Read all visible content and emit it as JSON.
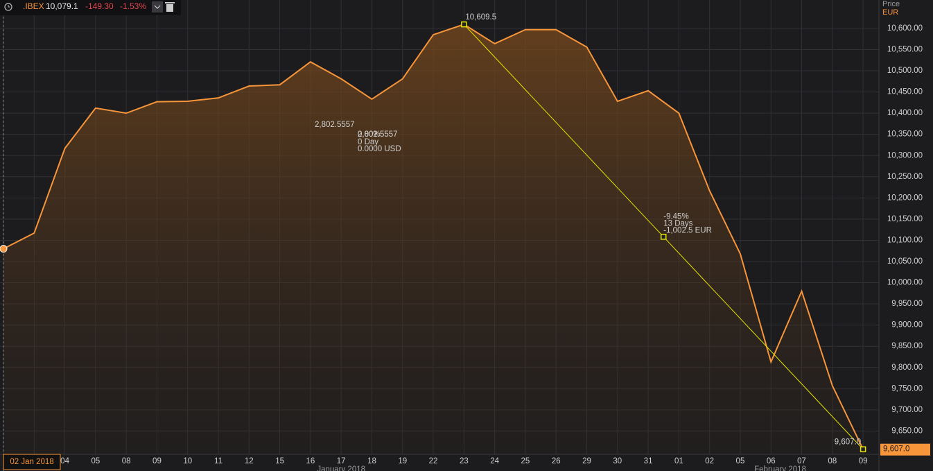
{
  "header": {
    "symbol": ".IBEX",
    "last": "10,079.1",
    "change": "-149.30",
    "change_pct": "-1.53%"
  },
  "chart_data": {
    "type": "line",
    "area": true,
    "color": "#f7953b",
    "y_axis_title": "Price",
    "y_axis_unit": "EUR",
    "cursor_label": "02 Jan 2018",
    "month_labels": [
      "January 2018",
      "February 2018"
    ],
    "categories": [
      null,
      null,
      "04",
      "05",
      "08",
      "09",
      "10",
      "11",
      "12",
      "15",
      "16",
      "17",
      "18",
      "19",
      "22",
      "23",
      "24",
      "25",
      "26",
      "29",
      "30",
      "31",
      "01",
      "02",
      "05",
      "06",
      "07",
      "08",
      "09"
    ],
    "values": [
      10080,
      10117,
      10317,
      10412,
      10400,
      10427,
      10428,
      10436,
      10464,
      10467,
      10521,
      10481,
      10433,
      10481,
      10585,
      10609.5,
      10564,
      10597,
      10597,
      10556,
      10428,
      10453,
      10400,
      10217,
      10068,
      9813,
      9980,
      9757,
      9607
    ],
    "ylim": [
      9595,
      10667
    ],
    "yticks": [
      {
        "value": 10600,
        "label": "10,600.00"
      },
      {
        "value": 10550,
        "label": "10,550.00"
      },
      {
        "value": 10500,
        "label": "10,500.00"
      },
      {
        "value": 10450,
        "label": "10,450.00"
      },
      {
        "value": 10400,
        "label": "10,400.00"
      },
      {
        "value": 10350,
        "label": "10,350.00"
      },
      {
        "value": 10300,
        "label": "10,300.00"
      },
      {
        "value": 10250,
        "label": "10,250.00"
      },
      {
        "value": 10200,
        "label": "10,200.00"
      },
      {
        "value": 10150,
        "label": "10,150.00"
      },
      {
        "value": 10100,
        "label": "10,100.00"
      },
      {
        "value": 10050,
        "label": "10,050.00"
      },
      {
        "value": 10000,
        "label": "10,000.00"
      },
      {
        "value": 9950,
        "label": "9,950.00"
      },
      {
        "value": 9900,
        "label": "9,900.00"
      },
      {
        "value": 9850,
        "label": "9,850.00"
      },
      {
        "value": 9800,
        "label": "9,800.00"
      },
      {
        "value": 9750,
        "label": "9,750.00"
      },
      {
        "value": 9700,
        "label": "9,700.00"
      },
      {
        "value": 9650,
        "label": "9,650.00"
      }
    ],
    "grid": true,
    "last_price": {
      "value": 9607,
      "label": "9,607.0"
    },
    "trendline": {
      "color": "#e6e600",
      "start": {
        "value": 10609.5,
        "label": "10,609.5"
      },
      "end": {
        "value": 9607,
        "label": "9,607.0"
      },
      "stats": [
        "-9.45%",
        "13 Days",
        "-1,002.5 EUR"
      ]
    },
    "stray_annotations": [
      "2,802.5557",
      "0.00%",
      "2,802.5557",
      "0 Day",
      "0.0000 USD"
    ]
  }
}
